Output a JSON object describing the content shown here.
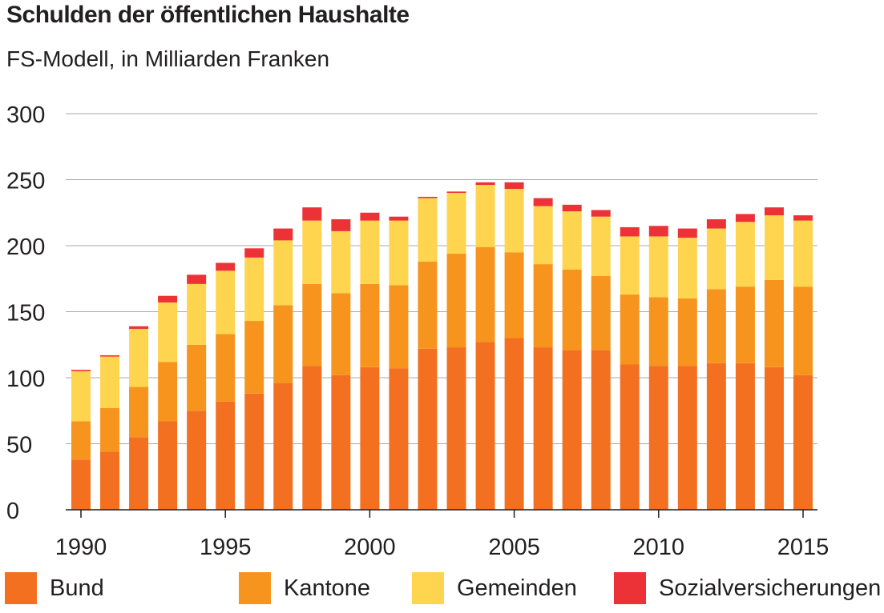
{
  "chart_data": {
    "type": "bar",
    "stacked": true,
    "title": "Schulden der öffentlichen Haushalte",
    "subtitle": "FS-Modell, in Milliarden Franken",
    "ylim": [
      0,
      300
    ],
    "yticks": [
      0,
      50,
      100,
      150,
      200,
      250,
      300
    ],
    "grid": true,
    "legend_position": "bottom",
    "categories": [
      1990,
      1991,
      1992,
      1993,
      1994,
      1995,
      1996,
      1997,
      1998,
      1999,
      2000,
      2001,
      2002,
      2003,
      2004,
      2005,
      2006,
      2007,
      2008,
      2009,
      2010,
      2011,
      2012,
      2013,
      2014,
      2015
    ],
    "xtick_labels": [
      "1990",
      "1995",
      "2000",
      "2005",
      "2010",
      "2015"
    ],
    "series": [
      {
        "name": "Bund",
        "color": "#f37021",
        "values": [
          38,
          44,
          55,
          67,
          75,
          82,
          88,
          96,
          109,
          102,
          108,
          107,
          122,
          123,
          127,
          130,
          123,
          121,
          121,
          110,
          109,
          109,
          111,
          111,
          108,
          102
        ]
      },
      {
        "name": "Kantone",
        "color": "#f7941d",
        "values": [
          29,
          33,
          38,
          45,
          50,
          51,
          55,
          59,
          62,
          62,
          63,
          63,
          66,
          71,
          72,
          65,
          63,
          61,
          56,
          53,
          52,
          51,
          56,
          58,
          66,
          67
        ]
      },
      {
        "name": "Gemeinden",
        "color": "#ffd54f",
        "values": [
          38,
          39,
          44,
          45,
          46,
          48,
          48,
          49,
          48,
          47,
          48,
          49,
          48,
          46,
          47,
          48,
          44,
          44,
          45,
          44,
          46,
          46,
          46,
          49,
          49,
          50
        ]
      },
      {
        "name": "Sozialversicherungen",
        "color": "#ed3237",
        "values": [
          1,
          1,
          2,
          5,
          7,
          6,
          7,
          9,
          10,
          9,
          6,
          3,
          1,
          1,
          2,
          5,
          6,
          5,
          5,
          7,
          8,
          7,
          7,
          6,
          6,
          4
        ]
      }
    ]
  }
}
